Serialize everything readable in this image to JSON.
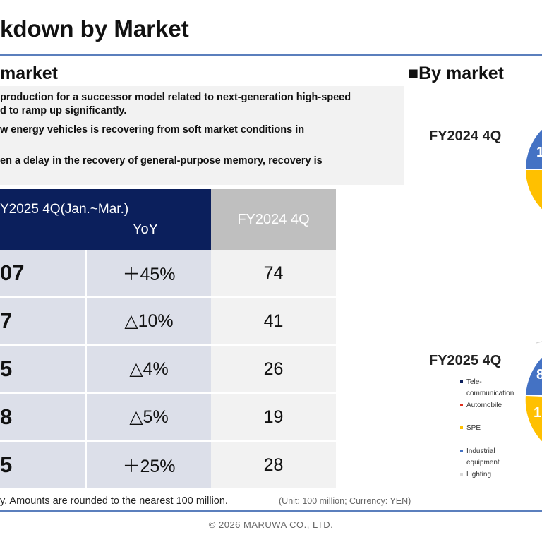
{
  "header": {
    "title": "kdown by Market"
  },
  "left_section": {
    "title": "market"
  },
  "right_section": {
    "title": "■By market"
  },
  "notes": [
    "production for a successor model related to next-generation high-speed",
    "d to ramp up significantly.",
    "w energy vehicles is recovering from soft market conditions in",
    "en a delay in the recovery of general-purpose memory, recovery is"
  ],
  "table": {
    "header_current_line1": "Y2025 4Q(Jan.~Mar.)",
    "header_current_line2": "YoY",
    "header_previous": "FY2024 4Q",
    "rows": [
      {
        "value": "07",
        "yoy": "＋45%",
        "prev": "74"
      },
      {
        "value": "7",
        "yoy": "△10%",
        "prev": "41"
      },
      {
        "value": "5",
        "yoy": "△4%",
        "prev": "26"
      },
      {
        "value": "8",
        "yoy": "△5%",
        "prev": "19"
      },
      {
        "value": "5",
        "yoy": "＋25%",
        "prev": "28"
      }
    ]
  },
  "footnote": "y. Amounts are rounded to the nearest 100 million.",
  "unit_note": "(Unit: 100 million; Currency: YEN)",
  "copyright": "© 2026 MARUWA CO., LTD.",
  "pies": [
    {
      "label": "FY2024 4Q",
      "visible_text": "1"
    },
    {
      "label": "FY2025 4Q",
      "visible_text_top": "8",
      "visible_text_bottom": "1"
    }
  ],
  "colors": {
    "navy": "#0b1f5c",
    "blue": "#4472c4",
    "yellow": "#ffc000",
    "red": "#e0301e",
    "gray": "#bfbfbf",
    "light_gray": "#d9d9d9"
  },
  "legend": [
    {
      "label_line1": "Tele-",
      "label_line2": "communication",
      "color": "#0b1f5c"
    },
    {
      "label_line1": "Automobile",
      "label_line2": "",
      "color": "#e0301e"
    },
    {
      "label_line1": "SPE",
      "label_line2": "",
      "color": "#ffc000"
    },
    {
      "label_line1": "Industrial",
      "label_line2": "equipment",
      "color": "#4472c4"
    },
    {
      "label_line1": "Lighting",
      "label_line2": "",
      "color": "#d9d9d9"
    }
  ]
}
